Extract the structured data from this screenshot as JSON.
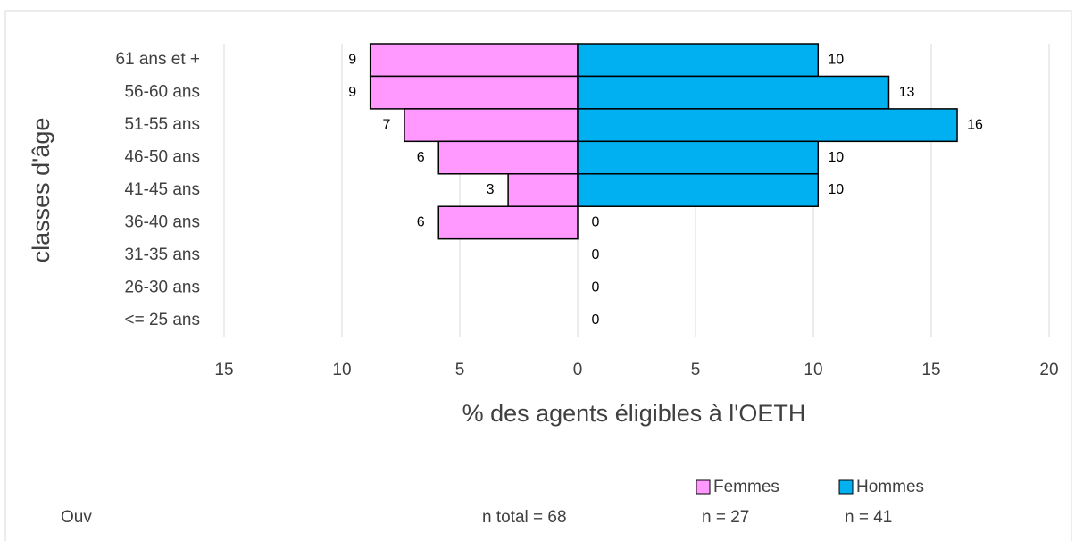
{
  "chart_data": {
    "type": "pyramid",
    "categories": [
      "61 ans et +",
      "56-60 ans",
      "51-55 ans",
      "46-50 ans",
      "41-45 ans",
      "36-40 ans",
      "31-35 ans",
      "26-30 ans",
      "<= 25 ans"
    ],
    "series": [
      {
        "name": "Femmes",
        "side": "left",
        "color": "#ff99ff",
        "values": [
          8.8,
          8.8,
          7.35,
          5.9,
          2.95,
          5.9,
          null,
          null,
          null
        ],
        "value_labels": [
          "9",
          "9",
          "7",
          "6",
          "3",
          "6",
          null,
          null,
          null
        ],
        "legend_note": "n = 27"
      },
      {
        "name": "Hommes",
        "side": "right",
        "color": "#00b0f0",
        "values": [
          10.2,
          13.2,
          16.1,
          10.2,
          10.2,
          0,
          0,
          0,
          0
        ],
        "value_labels": [
          "10",
          "13",
          "16",
          "10",
          "10",
          "0",
          "0",
          "0",
          "0"
        ],
        "legend_note": "n = 41"
      }
    ],
    "xlim": [
      -15,
      20
    ],
    "xticks": [
      {
        "value": -15,
        "label": "15"
      },
      {
        "value": -10,
        "label": "10"
      },
      {
        "value": -5,
        "label": "5"
      },
      0,
      5,
      10,
      15,
      20
    ],
    "xlabel": "% des agents éligibles à l'OETH",
    "ylabel": "classes d'âge",
    "grid": true,
    "annotations": [
      "Ouv",
      "n total = 68"
    ]
  }
}
